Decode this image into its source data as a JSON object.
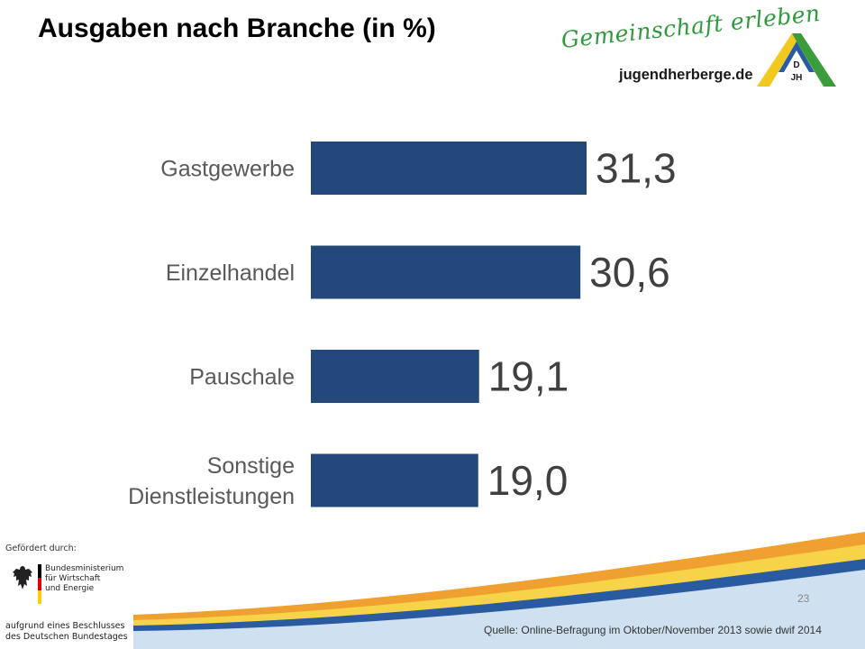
{
  "slide": {
    "title": "Ausgaben nach Branche (in %)",
    "page_number": "23",
    "source": "Quelle: Online-Befragung im Oktober/November 2013 sowie dwif 2014"
  },
  "logo": {
    "slogan": "Gemeinschaft erleben",
    "url": "jugendherberge.de",
    "mark_text": "DJH"
  },
  "funding": {
    "header": "Gefördert durch:",
    "ministry": "Bundesministerium\nfür Wirtschaft\nund Energie",
    "footer": "aufgrund eines Beschlusses\ndes Deutschen Bundestages"
  },
  "colors": {
    "bar": "#22497a",
    "wave_orange": "#f0a030",
    "wave_yellow": "#f6d348",
    "wave_blue": "#2a5aa0",
    "wave_light": "#cfe0f0"
  },
  "chart_data": {
    "type": "bar",
    "orientation": "horizontal",
    "categories": [
      "Gastgewerbe",
      "Einzelhandel",
      "Pauschale",
      "Sonstige Dienstleistungen"
    ],
    "category_lines": [
      [
        "Gastgewerbe"
      ],
      [
        "Einzelhandel"
      ],
      [
        "Pauschale"
      ],
      [
        "Sonstige",
        "Dienstleistungen"
      ]
    ],
    "values": [
      31.3,
      30.6,
      19.1,
      19.0
    ],
    "value_labels": [
      "31,3",
      "30,6",
      "19,1",
      "19,0"
    ],
    "title": "Ausgaben nach Branche (in %)",
    "xlabel": "",
    "ylabel": "",
    "grid": false,
    "legend": "none"
  }
}
